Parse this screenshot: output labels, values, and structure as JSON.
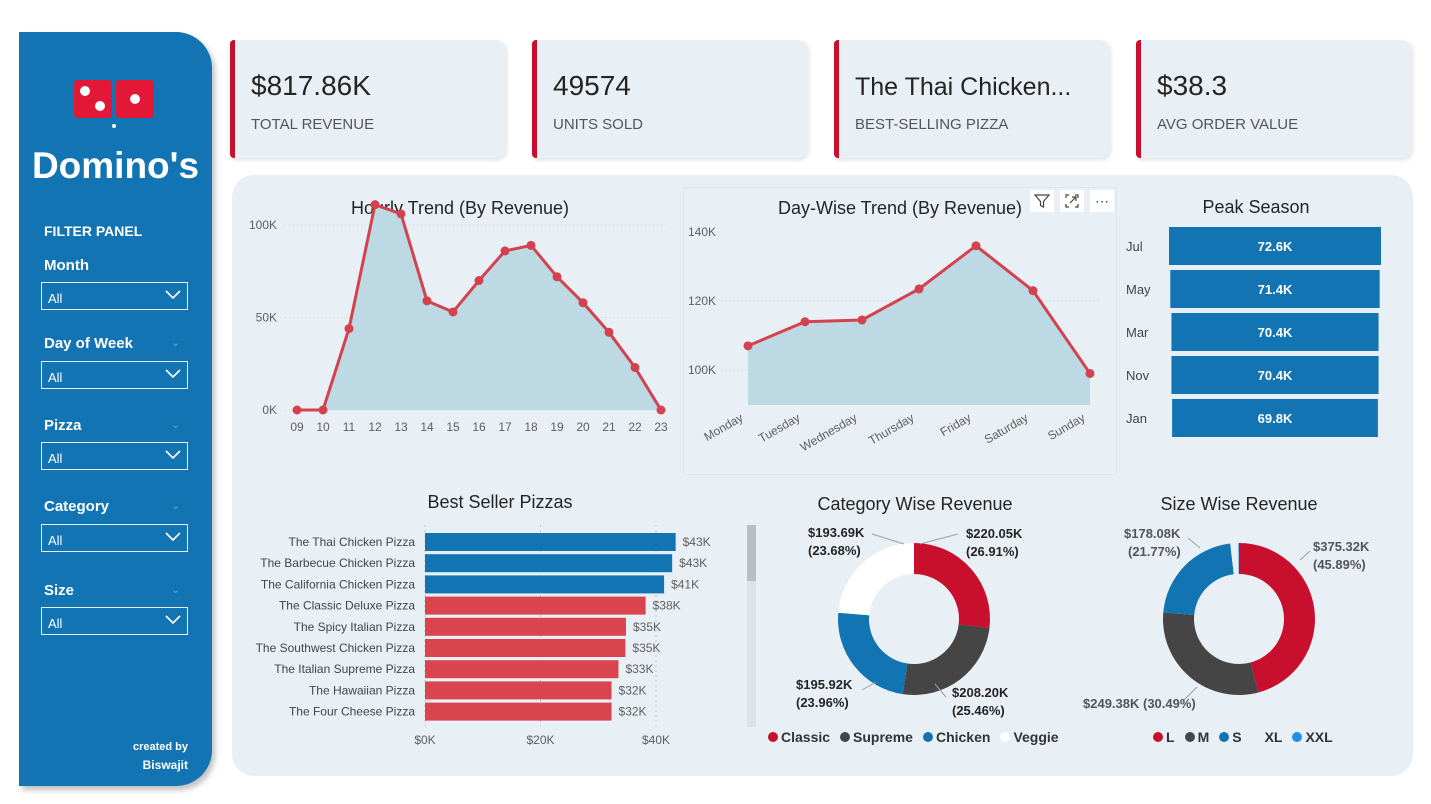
{
  "sidebar": {
    "brand": "Domino's",
    "filter_title": "FILTER PANEL",
    "filters": [
      {
        "label": "Month",
        "value": "All"
      },
      {
        "label": "Day of Week",
        "value": "All"
      },
      {
        "label": "Pizza",
        "value": "All"
      },
      {
        "label": "Category",
        "value": "All"
      },
      {
        "label": "Size",
        "value": "All"
      }
    ],
    "credit_line1": "created by",
    "credit_line2": "Biswajit",
    "icons": {
      "logo": "dominos-logo-icon",
      "dropdown": "chevron-down-icon"
    }
  },
  "kpis": [
    {
      "value": "$817.86K",
      "label": "TOTAL REVENUE"
    },
    {
      "value": "49574",
      "label": "UNITS SOLD"
    },
    {
      "value": "The Thai Chicken...",
      "label": "BEST-SELLING PIZZA"
    },
    {
      "value": "$38.3",
      "label": "AVG ORDER VALUE"
    }
  ],
  "colors": {
    "sidebar": "#1274b2",
    "accent_red": "#c8102e",
    "line_red": "#d3434f",
    "area_fill": "#bcd9e4",
    "bar_blue": "#1274b2",
    "bar_red": "#d9444f",
    "dark_grey": "#454545",
    "panel_bg": "#e9f0f5"
  },
  "visual_tools": {
    "filter": "filter-icon",
    "expand": "focus-mode-icon",
    "more": "more-options-icon"
  },
  "chart_data": [
    {
      "type": "area",
      "title": "Hourly Trend (By Revenue)",
      "x": [
        "09",
        "10",
        "11",
        "12",
        "13",
        "14",
        "15",
        "16",
        "17",
        "18",
        "19",
        "20",
        "21",
        "22",
        "23"
      ],
      "values": [
        0,
        0,
        44000,
        111000,
        106000,
        59000,
        53000,
        70000,
        86000,
        89000,
        72000,
        58000,
        42000,
        23000,
        0
      ],
      "y_ticks": [
        "0K",
        "50K",
        "100K"
      ],
      "ylim": [
        0,
        120000
      ]
    },
    {
      "type": "area",
      "title": "Day-Wise Trend (By Revenue)",
      "x": [
        "Monday",
        "Tuesday",
        "Wednesday",
        "Thursday",
        "Friday",
        "Saturday",
        "Sunday"
      ],
      "values": [
        107000,
        114000,
        114500,
        123500,
        136000,
        123000,
        99000
      ],
      "y_ticks": [
        "100K",
        "120K",
        "140K"
      ],
      "ylim": [
        90000,
        142000
      ]
    },
    {
      "type": "bar",
      "title": "Peak Season",
      "categories": [
        "Jul",
        "May",
        "Mar",
        "Nov",
        "Jan"
      ],
      "labels": [
        "72.6K",
        "71.4K",
        "70.4K",
        "70.4K",
        "69.8K"
      ],
      "values": [
        72600,
        71400,
        70400,
        70400,
        69800
      ]
    },
    {
      "type": "bar",
      "title": "Best Seller Pizzas",
      "categories": [
        "The Thai Chicken Pizza",
        "The Barbecue Chicken Pizza",
        "The California Chicken Pizza",
        "The Classic Deluxe Pizza",
        "The Spicy Italian Pizza",
        "The Southwest Chicken Pizza",
        "The Italian Supreme Pizza",
        "The Hawaiian Pizza",
        "The Four Cheese Pizza"
      ],
      "values": [
        43400,
        42800,
        41400,
        38200,
        34800,
        34700,
        33500,
        32300,
        32300
      ],
      "labels": [
        "$43K",
        "$43K",
        "$41K",
        "$38K",
        "$35K",
        "$35K",
        "$33K",
        "$32K",
        "$32K"
      ],
      "bar_category": [
        "Chicken",
        "Chicken",
        "Chicken",
        "Classic",
        "Supreme",
        "Chicken",
        "Supreme",
        "Classic",
        "Veggie"
      ],
      "x_ticks": [
        "$0K",
        "$20K",
        "$40K"
      ],
      "xlim": [
        0,
        44000
      ]
    },
    {
      "type": "pie",
      "title": "Category Wise Revenue",
      "slices": [
        {
          "name": "Classic",
          "value": 220.05,
          "label": "$220.05K",
          "pct": "(26.91%)",
          "color": "#c8102e"
        },
        {
          "name": "Supreme",
          "value": 208.2,
          "label": "$208.20K",
          "pct": "(25.46%)",
          "color": "#454545"
        },
        {
          "name": "Chicken",
          "value": 195.92,
          "label": "$195.92K",
          "pct": "(23.96%)",
          "color": "#1274b2"
        },
        {
          "name": "Veggie",
          "value": 193.69,
          "label": "$193.69K",
          "pct": "(23.68%)",
          "color": "#ffffff"
        }
      ]
    },
    {
      "type": "pie",
      "title": "Size Wise Revenue",
      "slices": [
        {
          "name": "L",
          "value": 375.32,
          "label": "$375.32K",
          "pct": "(45.89%)",
          "color": "#c8102e"
        },
        {
          "name": "M",
          "value": 249.38,
          "label": "$249.38K",
          "pct": "(30.49%)",
          "color": "#454545"
        },
        {
          "name": "S",
          "value": 178.08,
          "label": "$178.08K",
          "pct": "(21.77%)",
          "color": "#1274b2"
        },
        {
          "name": "XL",
          "value": 14.08,
          "label": "",
          "pct": "",
          "color": "#e9f0f5"
        },
        {
          "name": "XXL",
          "value": 1.0,
          "label": "",
          "pct": "",
          "color": "#1e90e8"
        }
      ]
    }
  ]
}
